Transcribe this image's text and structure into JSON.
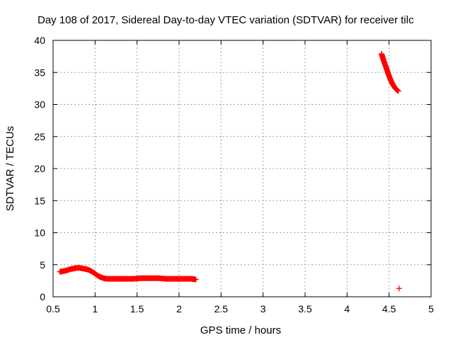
{
  "chart_data": {
    "type": "scatter",
    "title": "Day 108 of 2017, Sidereal Day-to-day VTEC variation (SDTVAR) for receiver tilc",
    "xlabel": "GPS time / hours",
    "ylabel": "SDTVAR / TECUs",
    "xlim": [
      0.5,
      5
    ],
    "ylim": [
      0,
      40
    ],
    "x_ticks": [
      0.5,
      1,
      1.5,
      2,
      2.5,
      3,
      3.5,
      4,
      4.5,
      5
    ],
    "x_tick_labels": [
      "0.5",
      "1",
      "1.5",
      "2",
      "2.5",
      "3",
      "3.5",
      "4",
      "4.5",
      "5"
    ],
    "y_ticks": [
      0,
      5,
      10,
      15,
      20,
      25,
      30,
      35,
      40
    ],
    "y_tick_labels": [
      "0",
      "5",
      "10",
      "15",
      "20",
      "25",
      "30",
      "35",
      "40"
    ],
    "grid": true,
    "marker": "plus",
    "color": "#ff0000",
    "series": [
      {
        "x": [
          0.58,
          0.62,
          0.66,
          0.7,
          0.74,
          0.78,
          0.82,
          0.86,
          0.9,
          0.94,
          0.98,
          1.02,
          1.06,
          1.1,
          1.14,
          1.18,
          1.25,
          1.35,
          1.45,
          1.55,
          1.65,
          1.75,
          1.85,
          1.95,
          2.05,
          2.15,
          2.2
        ],
        "y": [
          3.9,
          4.0,
          4.1,
          4.3,
          4.4,
          4.5,
          4.5,
          4.4,
          4.3,
          4.1,
          3.8,
          3.4,
          3.1,
          2.9,
          2.8,
          2.8,
          2.8,
          2.8,
          2.8,
          2.9,
          2.9,
          2.9,
          2.8,
          2.8,
          2.8,
          2.8,
          2.7
        ]
      },
      {
        "x": [
          4.41,
          4.43,
          4.45,
          4.47,
          4.49,
          4.51,
          4.53,
          4.55,
          4.57,
          4.59,
          4.61
        ],
        "y": [
          37.9,
          37.1,
          36.3,
          35.6,
          34.8,
          34.1,
          33.5,
          33.0,
          32.6,
          32.3,
          32.1
        ]
      },
      {
        "x": [
          4.62
        ],
        "y": [
          1.3
        ]
      }
    ]
  }
}
